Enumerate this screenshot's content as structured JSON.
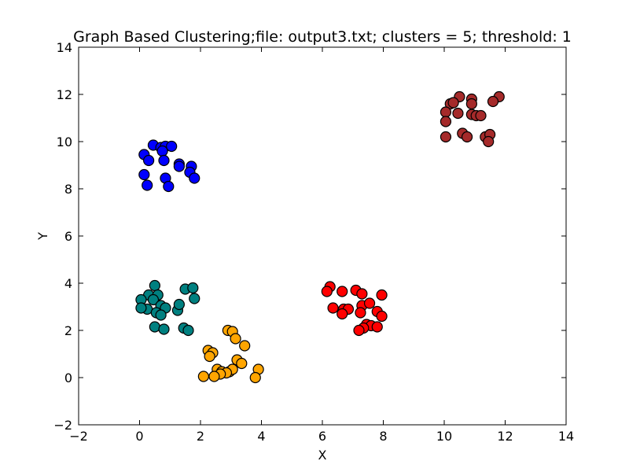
{
  "chart_data": {
    "type": "scatter",
    "title": "Graph Based Clustering;file: output3.txt; clusters = 5; threshold: 1",
    "xlabel": "X",
    "ylabel": "Y",
    "xlim": [
      -2,
      14
    ],
    "ylim": [
      -2,
      14
    ],
    "xticks": [
      -2,
      0,
      2,
      4,
      6,
      8,
      10,
      12,
      14
    ],
    "yticks": [
      -2,
      0,
      2,
      4,
      6,
      8,
      10,
      12,
      14
    ],
    "grid": false,
    "legend": "none",
    "series": [
      {
        "color": "#0000ff",
        "points": [
          [
            0.45,
            9.85
          ],
          [
            0.7,
            9.75
          ],
          [
            0.85,
            9.8
          ],
          [
            1.05,
            9.8
          ],
          [
            0.75,
            9.6
          ],
          [
            0.15,
            9.45
          ],
          [
            0.3,
            9.2
          ],
          [
            0.8,
            9.2
          ],
          [
            1.3,
            9.05
          ],
          [
            1.3,
            8.95
          ],
          [
            1.7,
            8.95
          ],
          [
            1.65,
            8.7
          ],
          [
            1.8,
            8.45
          ],
          [
            0.15,
            8.6
          ],
          [
            0.85,
            8.45
          ],
          [
            0.25,
            8.15
          ],
          [
            0.95,
            8.1
          ]
        ]
      },
      {
        "color": "#a52a2a",
        "points": [
          [
            10.5,
            11.9
          ],
          [
            10.9,
            11.8
          ],
          [
            11.8,
            11.9
          ],
          [
            10.2,
            11.6
          ],
          [
            10.3,
            11.65
          ],
          [
            10.9,
            11.6
          ],
          [
            11.6,
            11.7
          ],
          [
            10.05,
            11.25
          ],
          [
            10.45,
            11.2
          ],
          [
            10.9,
            11.15
          ],
          [
            11.05,
            11.1
          ],
          [
            11.2,
            11.1
          ],
          [
            10.05,
            10.85
          ],
          [
            10.6,
            10.35
          ],
          [
            10.75,
            10.2
          ],
          [
            11.35,
            10.2
          ],
          [
            11.5,
            10.3
          ],
          [
            11.45,
            10.0
          ],
          [
            10.05,
            10.2
          ]
        ]
      },
      {
        "color": "#008080",
        "points": [
          [
            0.5,
            3.9
          ],
          [
            0.3,
            3.5
          ],
          [
            0.6,
            3.5
          ],
          [
            0.45,
            3.3
          ],
          [
            0.05,
            3.3
          ],
          [
            1.5,
            3.75
          ],
          [
            1.75,
            3.8
          ],
          [
            1.8,
            3.35
          ],
          [
            0.7,
            3.05
          ],
          [
            0.85,
            2.95
          ],
          [
            1.25,
            2.85
          ],
          [
            1.3,
            3.1
          ],
          [
            0.25,
            2.9
          ],
          [
            0.05,
            2.95
          ],
          [
            0.55,
            2.75
          ],
          [
            0.7,
            2.65
          ],
          [
            0.5,
            2.15
          ],
          [
            0.8,
            2.05
          ],
          [
            1.45,
            2.1
          ],
          [
            1.6,
            2.0
          ]
        ]
      },
      {
        "color": "#ff0000",
        "points": [
          [
            6.25,
            3.85
          ],
          [
            6.15,
            3.65
          ],
          [
            6.65,
            3.65
          ],
          [
            7.1,
            3.7
          ],
          [
            7.3,
            3.55
          ],
          [
            7.95,
            3.5
          ],
          [
            7.3,
            3.05
          ],
          [
            7.55,
            3.15
          ],
          [
            6.35,
            2.95
          ],
          [
            6.7,
            2.9
          ],
          [
            6.85,
            2.9
          ],
          [
            7.25,
            2.75
          ],
          [
            7.8,
            2.8
          ],
          [
            7.95,
            2.6
          ],
          [
            6.65,
            2.7
          ],
          [
            7.45,
            2.25
          ],
          [
            7.6,
            2.2
          ],
          [
            7.8,
            2.15
          ],
          [
            7.35,
            2.1
          ],
          [
            7.2,
            2.0
          ]
        ]
      },
      {
        "color": "#ffa500",
        "points": [
          [
            2.9,
            2.0
          ],
          [
            3.05,
            1.95
          ],
          [
            3.15,
            1.65
          ],
          [
            3.45,
            1.35
          ],
          [
            2.25,
            1.15
          ],
          [
            2.4,
            1.05
          ],
          [
            2.3,
            0.9
          ],
          [
            3.2,
            0.75
          ],
          [
            3.35,
            0.6
          ],
          [
            2.55,
            0.35
          ],
          [
            2.7,
            0.25
          ],
          [
            2.95,
            0.25
          ],
          [
            3.05,
            0.35
          ],
          [
            3.9,
            0.35
          ],
          [
            2.85,
            0.2
          ],
          [
            2.65,
            0.15
          ],
          [
            2.1,
            0.05
          ],
          [
            2.45,
            0.05
          ],
          [
            3.8,
            0.0
          ]
        ]
      }
    ]
  }
}
